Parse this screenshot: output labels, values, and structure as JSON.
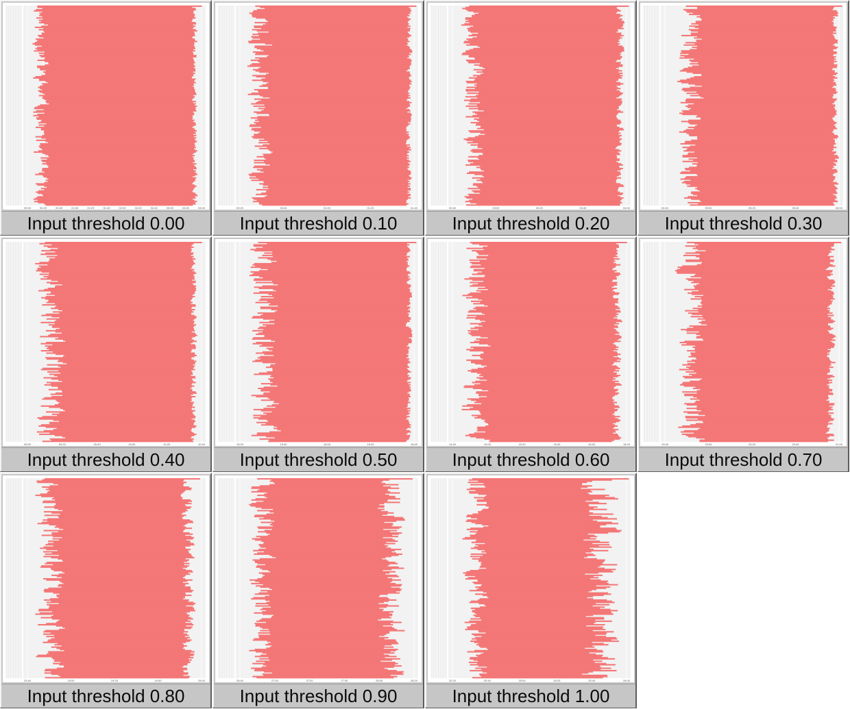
{
  "chart_data": [
    {
      "type": "bar",
      "orientation": "horizontal",
      "title": "Input threshold 0.00",
      "ticks": [
        "00:00",
        "00:20",
        "00:40",
        "01:00",
        "01:20",
        "01:40",
        "02:00",
        "02:20",
        "02:40",
        "03:00",
        "03:20",
        "03:40"
      ],
      "bar_color": "#f47777",
      "stripe_color": "#f2f2f2",
      "start_range": [
        0.04,
        0.15
      ],
      "end_range": [
        0.92,
        0.96
      ],
      "seed": 11
    },
    {
      "type": "bar",
      "orientation": "horizontal",
      "title": "Input threshold 0.10",
      "ticks": [
        "00:20",
        "00:40",
        "01:00",
        "01:20",
        "01:40"
      ],
      "bar_color": "#f47777",
      "stripe_color": "#f2f2f2",
      "start_range": [
        0.05,
        0.22
      ],
      "end_range": [
        0.93,
        0.97
      ],
      "seed": 23
    },
    {
      "type": "bar",
      "orientation": "horizontal",
      "title": "Input threshold 0.20",
      "ticks": [
        "02:40",
        "03:00",
        "03:20",
        "03:40",
        "04:00"
      ],
      "bar_color": "#f47777",
      "stripe_color": "#f2f2f2",
      "start_range": [
        0.06,
        0.22
      ],
      "end_range": [
        0.91,
        0.97
      ],
      "seed": 37
    },
    {
      "type": "bar",
      "orientation": "horizontal",
      "title": "Input threshold 0.30",
      "ticks": [
        "04:40",
        "05:00",
        "05:20",
        "05:40",
        "06:00"
      ],
      "bar_color": "#f47777",
      "stripe_color": "#f2f2f2",
      "start_range": [
        0.08,
        0.25
      ],
      "end_range": [
        0.93,
        0.98
      ],
      "seed": 41
    },
    {
      "type": "bar",
      "orientation": "horizontal",
      "title": "Input threshold 0.40",
      "ticks": [
        "09:00",
        "09:20",
        "09:40",
        "10:00",
        "10:20",
        "10:40"
      ],
      "bar_color": "#f47777",
      "stripe_color": "#f2f2f2",
      "start_range": [
        0.05,
        0.25
      ],
      "end_range": [
        0.91,
        0.96
      ],
      "seed": 53
    },
    {
      "type": "bar",
      "orientation": "horizontal",
      "title": "Input threshold 0.50",
      "ticks": [
        "15:20",
        "15:40",
        "16:00",
        "16:20",
        "16:40"
      ],
      "bar_color": "#f47777",
      "stripe_color": "#f2f2f2",
      "start_range": [
        0.05,
        0.26
      ],
      "end_range": [
        0.93,
        0.97
      ],
      "seed": 67
    },
    {
      "type": "bar",
      "orientation": "horizontal",
      "title": "Input threshold 0.60",
      "ticks": [
        "14:40",
        "15:00",
        "15:20",
        "15:40",
        "16:00",
        "16:20"
      ],
      "bar_color": "#f47777",
      "stripe_color": "#f2f2f2",
      "start_range": [
        0.05,
        0.25
      ],
      "end_range": [
        0.89,
        0.96
      ],
      "seed": 71
    },
    {
      "type": "bar",
      "orientation": "horizontal",
      "title": "Input threshold 0.70",
      "ticks": [
        "19:40",
        "20:00",
        "20:20",
        "20:40",
        "21:00"
      ],
      "bar_color": "#f47777",
      "stripe_color": "#f2f2f2",
      "start_range": [
        0.07,
        0.28
      ],
      "end_range": [
        0.9,
        0.97
      ],
      "seed": 83
    },
    {
      "type": "bar",
      "orientation": "horizontal",
      "title": "Input threshold 0.80",
      "ticks": [
        "23:40",
        "24:00",
        "24:20",
        "24:40",
        "25:00"
      ],
      "bar_color": "#f47777",
      "stripe_color": "#f2f2f2",
      "start_range": [
        0.05,
        0.24
      ],
      "end_range": [
        0.86,
        0.95
      ],
      "seed": 97
    },
    {
      "type": "bar",
      "orientation": "horizontal",
      "title": "Input threshold 0.90",
      "ticks": [
        "26:40",
        "27:00",
        "27:20",
        "27:40",
        "28:00",
        "28:20"
      ],
      "bar_color": "#f47777",
      "stripe_color": "#f2f2f2",
      "start_range": [
        0.05,
        0.24
      ],
      "end_range": [
        0.76,
        0.95
      ],
      "seed": 101
    },
    {
      "type": "bar",
      "orientation": "horizontal",
      "title": "Input threshold 1.00",
      "ticks": [
        "32:20",
        "32:40",
        "33:00",
        "33:20",
        "33:40",
        "34:00"
      ],
      "bar_color": "#f47777",
      "stripe_color": "#f2f2f2",
      "start_range": [
        0.07,
        0.24
      ],
      "end_range": [
        0.7,
        0.97
      ],
      "seed": 113
    }
  ]
}
